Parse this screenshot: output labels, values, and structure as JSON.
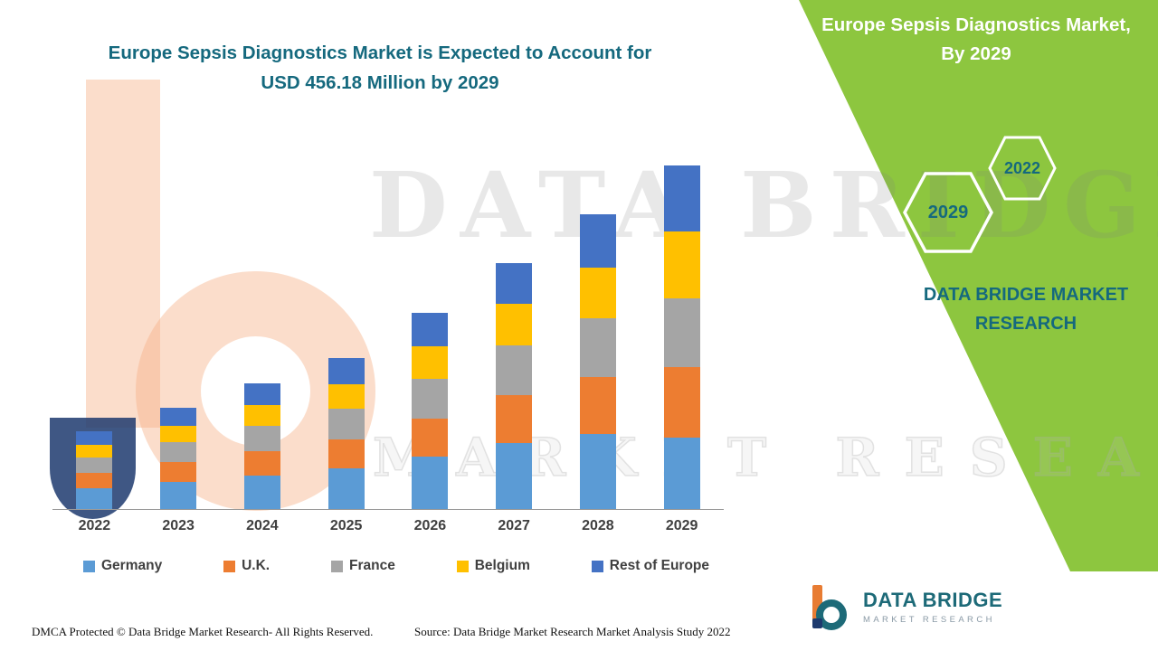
{
  "header": {
    "title_line1": "Europe Sepsis Diagnostics Market is Expected to Account for",
    "title_line2": "USD 456.18 Million by 2029"
  },
  "side_panel": {
    "bg_color": "#8DC63F",
    "heading_line1": "Europe Sepsis Diagnostics Market,",
    "heading_line2": "By 2029",
    "badge_front": "2029",
    "badge_back": "2022",
    "brand_line1": "DATA BRIDGE MARKET",
    "brand_line2": "RESEARCH"
  },
  "watermark": {
    "line1": "DATA BRIDGE",
    "line2": "MARKET RESEARCH"
  },
  "footer": {
    "dmca": "DMCA Protected © Data Bridge Market Research- All Rights Reserved.",
    "source": "Source: Data Bridge Market Research Market Analysis Study 2022",
    "logo_name": "DATA BRIDGE",
    "logo_sub": "MARKET RESEARCH"
  },
  "chart_data": {
    "type": "bar",
    "stacked": true,
    "title": "Europe Sepsis Diagnostics Market is Expected to Account for USD 456.18 Million by 2029",
    "unit": "USD Million",
    "categories": [
      "2022",
      "2023",
      "2024",
      "2025",
      "2026",
      "2027",
      "2028",
      "2029"
    ],
    "series": [
      {
        "name": "Germany",
        "color": "#5B9BD5",
        "values": [
          28,
          36,
          45,
          54,
          70,
          88,
          100,
          95
        ]
      },
      {
        "name": "U.K.",
        "color": "#ED7D31",
        "values": [
          20,
          26,
          32,
          39,
          50,
          63,
          75,
          93
        ]
      },
      {
        "name": "France",
        "color": "#A5A5A5",
        "values": [
          21,
          27,
          34,
          40,
          53,
          66,
          78,
          92
        ]
      },
      {
        "name": "Belgium",
        "color": "#FFC000",
        "values": [
          16,
          22,
          27,
          33,
          43,
          55,
          68,
          88
        ]
      },
      {
        "name": "Rest of Europe",
        "color": "#4472C4",
        "values": [
          18,
          23,
          29,
          34,
          44,
          55,
          70,
          88.18
        ]
      }
    ],
    "totals": [
      103,
      134,
      167,
      200,
      260,
      327,
      391,
      456.18
    ],
    "ylim": [
      0,
      470
    ],
    "gridlines": false,
    "y_axis_visible": false,
    "legend_position": "bottom"
  }
}
